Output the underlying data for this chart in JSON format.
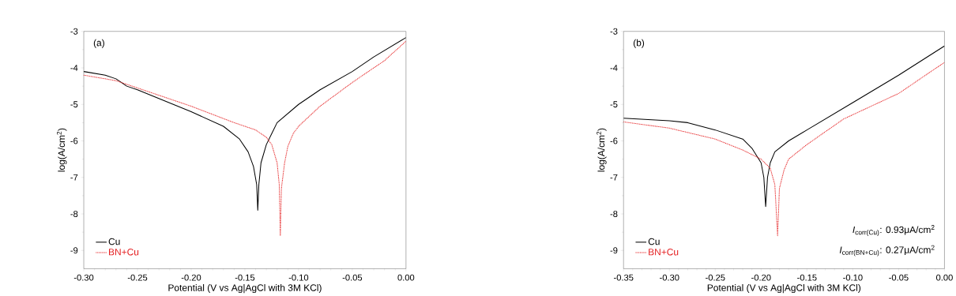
{
  "chart_data": [
    {
      "type": "line",
      "xlabel": "Potential (V vs Ag|AgCl with 3M KCl)",
      "ylabel": "log(A/cm$^{2}$)",
      "xlim": [
        -0.3,
        0.0
      ],
      "ylim": [
        -9.5,
        -3
      ],
      "xticks": [
        {
          "value": -0.3,
          "label": "-0.30"
        },
        {
          "value": -0.25,
          "label": "-0.25"
        },
        {
          "value": -0.2,
          "label": "-0.20"
        },
        {
          "value": -0.15,
          "label": "-0.15"
        },
        {
          "value": -0.1,
          "label": "-0.10"
        },
        {
          "value": -0.05,
          "label": "-0.05"
        },
        {
          "value": 0,
          "label": "0.00"
        }
      ],
      "yticks": [
        -9,
        -8,
        -7,
        -6,
        -5,
        -4,
        -3
      ],
      "legend": "bottom left",
      "annotations": [
        "(a)"
      ],
      "series": [
        {
          "name": "Cu",
          "color": "#000000",
          "line_style": "solid",
          "x": [
            -0.3,
            -0.28,
            -0.27,
            -0.26,
            -0.25,
            -0.2,
            -0.17,
            -0.155,
            -0.147,
            -0.142,
            -0.139,
            -0.138,
            -0.137,
            -0.135,
            -0.13,
            -0.125,
            -0.12,
            -0.1,
            -0.08,
            -0.05,
            -0.03,
            0.0
          ],
          "values": [
            -4.1,
            -4.2,
            -4.3,
            -4.5,
            -4.6,
            -5.2,
            -5.6,
            -5.95,
            -6.3,
            -6.7,
            -7.2,
            -7.9,
            -7.2,
            -6.6,
            -6.1,
            -5.8,
            -5.5,
            -5.0,
            -4.6,
            -4.1,
            -3.7,
            -3.17
          ]
        },
        {
          "name": "BN+Cu",
          "color": "#e41a1c",
          "line_style": "dotted",
          "x": [
            -0.3,
            -0.27,
            -0.25,
            -0.2,
            -0.16,
            -0.14,
            -0.13,
            -0.125,
            -0.12,
            -0.118,
            -0.117,
            -0.116,
            -0.113,
            -0.11,
            -0.105,
            -0.1,
            -0.08,
            -0.05,
            -0.02,
            0.0
          ],
          "values": [
            -4.2,
            -4.35,
            -4.55,
            -5.05,
            -5.5,
            -5.7,
            -5.9,
            -6.1,
            -6.6,
            -7.2,
            -8.6,
            -7.3,
            -6.6,
            -6.15,
            -5.8,
            -5.6,
            -5.05,
            -4.4,
            -3.8,
            -3.27
          ]
        }
      ]
    },
    {
      "type": "line",
      "xlabel": "Potential (V vs Ag|AgCl with 3M KCl)",
      "ylabel": "log(A/cm$^{2}$)",
      "xlim": [
        -0.35,
        0.0
      ],
      "ylim": [
        -9.5,
        -3
      ],
      "xticks": [
        {
          "value": -0.35,
          "label": "-0.35"
        },
        {
          "value": -0.3,
          "label": "-0.30"
        },
        {
          "value": -0.25,
          "label": "-0.25"
        },
        {
          "value": -0.2,
          "label": "-0.20"
        },
        {
          "value": -0.15,
          "label": "-0.15"
        },
        {
          "value": -0.1,
          "label": "-0.10"
        },
        {
          "value": -0.05,
          "label": "-0.05"
        },
        {
          "value": 0,
          "label": "0.00"
        }
      ],
      "yticks": [
        -9,
        -8,
        -7,
        -6,
        -5,
        -4,
        -3
      ],
      "legend": "bottom left",
      "annotations": [
        "(b)",
        "*I*$_{corr(Cu)}$: 0.93μA/cm$^{2}$",
        "*I*$_{corr(BN+Cu)}$: 0.27μA/cm$^{2}$"
      ],
      "series": [
        {
          "name": "Cu",
          "color": "#000000",
          "line_style": "solid",
          "x": [
            -0.35,
            -0.3,
            -0.28,
            -0.25,
            -0.22,
            -0.21,
            -0.2,
            -0.197,
            -0.195,
            -0.193,
            -0.19,
            -0.185,
            -0.17,
            -0.15,
            -0.1,
            -0.05,
            0.0
          ],
          "values": [
            -5.38,
            -5.45,
            -5.5,
            -5.7,
            -5.95,
            -6.2,
            -6.6,
            -7.0,
            -7.8,
            -7.0,
            -6.6,
            -6.3,
            -6.0,
            -5.7,
            -4.95,
            -4.2,
            -3.4
          ]
        },
        {
          "name": "BN+Cu",
          "color": "#e41a1c",
          "line_style": "dotted",
          "x": [
            -0.35,
            -0.3,
            -0.25,
            -0.22,
            -0.2,
            -0.19,
            -0.185,
            -0.182,
            -0.18,
            -0.175,
            -0.17,
            -0.15,
            -0.11,
            -0.05,
            0.0
          ],
          "values": [
            -5.48,
            -5.65,
            -5.95,
            -6.25,
            -6.5,
            -6.75,
            -7.2,
            -8.6,
            -7.3,
            -6.8,
            -6.5,
            -6.1,
            -5.4,
            -4.7,
            -3.85
          ]
        }
      ]
    }
  ]
}
